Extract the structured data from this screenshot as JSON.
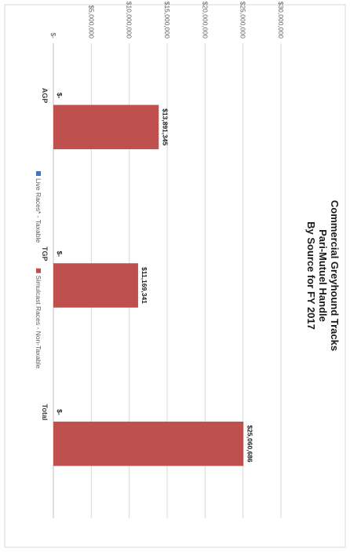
{
  "chart_data": {
    "type": "bar",
    "orientation": "rotated-90-clockwise",
    "title": [
      "Commercial Greyhound Tracks",
      "Pari-Mutuel Handle",
      "By Source for FY 2017"
    ],
    "categories": [
      "AGP",
      "TGP",
      "Total"
    ],
    "series": [
      {
        "name": "Live Races* - Taxable",
        "color": "#4472C4",
        "values": [
          0,
          0,
          0
        ],
        "labels": [
          "$-",
          "$-",
          "$-"
        ]
      },
      {
        "name": "Simulcast Races - Non-Taxable",
        "color": "#C0504D",
        "values": [
          13891345,
          11169341,
          25060686
        ],
        "labels": [
          "$13,891,345",
          "$11,169,341",
          "$25,060,686"
        ]
      }
    ],
    "ylim": [
      0,
      30000000
    ],
    "yticks": [
      0,
      5000000,
      10000000,
      15000000,
      20000000,
      25000000,
      30000000
    ],
    "ytick_labels": [
      "$-",
      "$5,000,000",
      "$10,000,000",
      "$15,000,000",
      "$20,000,000",
      "$25,000,000",
      "$30,000,000"
    ],
    "grid": true,
    "legend_position": "bottom"
  }
}
